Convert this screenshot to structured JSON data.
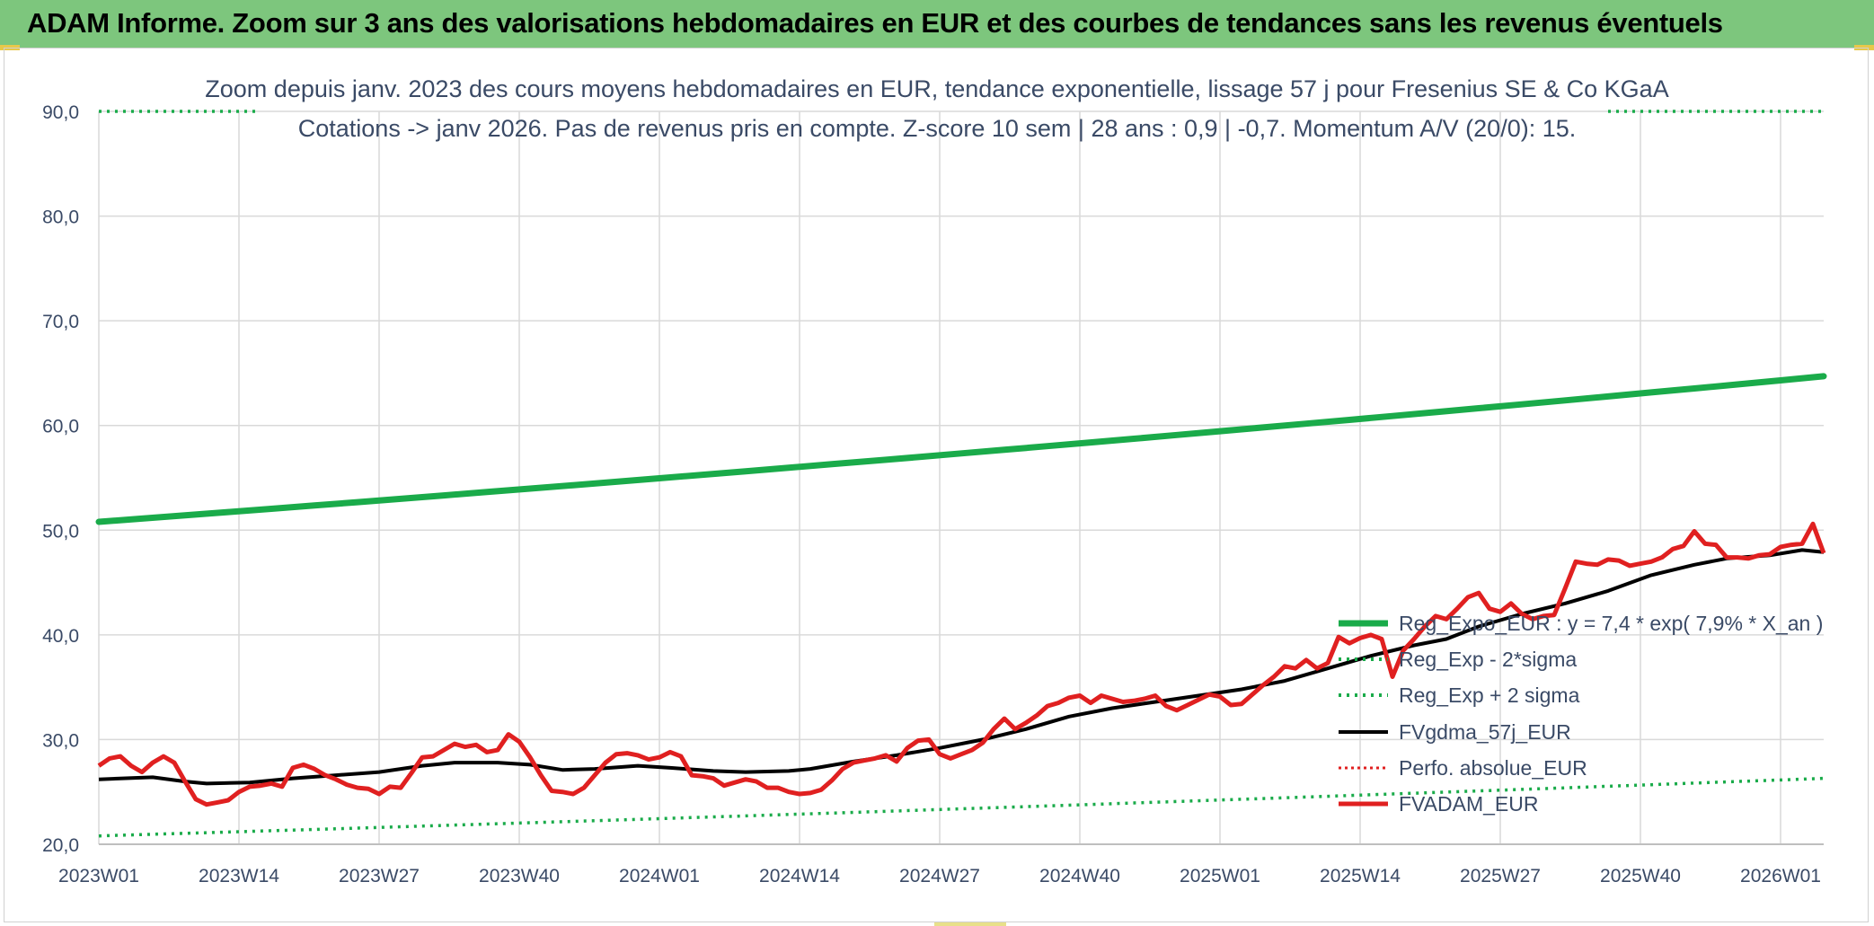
{
  "header": {
    "title": "ADAM Informe. Zoom sur 3 ans des valorisations hebdomadaires en EUR et des courbes de tendances sans les revenus éventuels"
  },
  "chart_data": {
    "type": "line",
    "title": "Zoom depuis janv. 2023 des cours moyens hebdomadaires en EUR, tendance exponentielle, lissage 57 j pour Fresenius SE & Co KGaA",
    "subtitle": "Cotations -> janv 2026. Pas de revenus pris en compte. Z-score 10 sem | 28 ans : 0,9 | -0,7. Momentum A/V (20/0): 15.",
    "ylim": [
      20,
      90
    ],
    "yticks": [
      "20,0",
      "30,0",
      "40,0",
      "50,0",
      "60,0",
      "70,0",
      "80,0",
      "90,0"
    ],
    "xticks": [
      "2023W01",
      "2023W14",
      "2023W27",
      "2023W40",
      "2024W01",
      "2024W14",
      "2024W27",
      "2024W40",
      "2025W01",
      "2025W14",
      "2025W27",
      "2025W40",
      "2026W01"
    ],
    "grid": true,
    "legend_position": "right",
    "x_weeks": 160,
    "series": [
      {
        "name": "Reg_Expo_EUR : y = 7,4 * exp( 7,9% *  X_an )",
        "color": "#1aab4a",
        "style": "solid-thick",
        "start": 50.8,
        "end": 64.7
      },
      {
        "name": "Reg_Exp - 2*sigma",
        "color": "#1aab4a",
        "style": "dotted",
        "start": 20.8,
        "end": 26.3
      },
      {
        "name": "Reg_Exp + 2 sigma",
        "color": "#1aab4a",
        "style": "dotted",
        "value": 90
      },
      {
        "name": "FVgdma_57j_EUR",
        "color": "#000000",
        "style": "solid",
        "points": [
          [
            0,
            26.2
          ],
          [
            5,
            26.4
          ],
          [
            8,
            26.0
          ],
          [
            10,
            25.8
          ],
          [
            14,
            25.9
          ],
          [
            18,
            26.3
          ],
          [
            22,
            26.6
          ],
          [
            26,
            26.9
          ],
          [
            30,
            27.5
          ],
          [
            33,
            27.8
          ],
          [
            37,
            27.8
          ],
          [
            40,
            27.6
          ],
          [
            43,
            27.1
          ],
          [
            46,
            27.2
          ],
          [
            50,
            27.5
          ],
          [
            53,
            27.3
          ],
          [
            57,
            27.0
          ],
          [
            60,
            26.9
          ],
          [
            64,
            27.0
          ],
          [
            66,
            27.2
          ],
          [
            70,
            27.9
          ],
          [
            74,
            28.5
          ],
          [
            78,
            29.2
          ],
          [
            82,
            30.0
          ],
          [
            86,
            31.0
          ],
          [
            90,
            32.2
          ],
          [
            94,
            33.0
          ],
          [
            98,
            33.6
          ],
          [
            102,
            34.2
          ],
          [
            106,
            34.8
          ],
          [
            110,
            35.6
          ],
          [
            114,
            36.8
          ],
          [
            118,
            38.0
          ],
          [
            122,
            39.0
          ],
          [
            125,
            39.6
          ],
          [
            128,
            40.8
          ],
          [
            132,
            42.0
          ],
          [
            136,
            43.0
          ],
          [
            140,
            44.2
          ],
          [
            144,
            45.7
          ],
          [
            148,
            46.7
          ],
          [
            151,
            47.3
          ],
          [
            155,
            47.6
          ],
          [
            158,
            48.1
          ],
          [
            160,
            47.9
          ]
        ]
      },
      {
        "name": "Perfo. absolue_EUR",
        "color": "#e02020",
        "style": "dotted"
      },
      {
        "name": "FVADAM_EUR",
        "color": "#e02020",
        "style": "solid-thick",
        "points": [
          [
            0,
            27.5
          ],
          [
            1,
            28.2
          ],
          [
            2,
            28.4
          ],
          [
            3,
            27.5
          ],
          [
            4,
            26.9
          ],
          [
            5,
            27.8
          ],
          [
            6,
            28.4
          ],
          [
            7,
            27.8
          ],
          [
            8,
            26.0
          ],
          [
            9,
            24.3
          ],
          [
            10,
            23.8
          ],
          [
            11,
            24.0
          ],
          [
            12,
            24.2
          ],
          [
            13,
            25.0
          ],
          [
            14,
            25.5
          ],
          [
            15,
            25.6
          ],
          [
            16,
            25.8
          ],
          [
            17,
            25.5
          ],
          [
            18,
            27.3
          ],
          [
            19,
            27.6
          ],
          [
            20,
            27.2
          ],
          [
            21,
            26.6
          ],
          [
            22,
            26.2
          ],
          [
            23,
            25.7
          ],
          [
            24,
            25.4
          ],
          [
            25,
            25.3
          ],
          [
            26,
            24.8
          ],
          [
            27,
            25.5
          ],
          [
            28,
            25.4
          ],
          [
            29,
            26.8
          ],
          [
            30,
            28.3
          ],
          [
            31,
            28.4
          ],
          [
            32,
            29.0
          ],
          [
            33,
            29.6
          ],
          [
            34,
            29.3
          ],
          [
            35,
            29.5
          ],
          [
            36,
            28.8
          ],
          [
            37,
            29.0
          ],
          [
            38,
            30.5
          ],
          [
            39,
            29.8
          ],
          [
            40,
            28.3
          ],
          [
            41,
            26.6
          ],
          [
            42,
            25.1
          ],
          [
            43,
            25.0
          ],
          [
            44,
            24.8
          ],
          [
            45,
            25.4
          ],
          [
            46,
            26.6
          ],
          [
            47,
            27.8
          ],
          [
            48,
            28.6
          ],
          [
            49,
            28.7
          ],
          [
            50,
            28.5
          ],
          [
            51,
            28.1
          ],
          [
            52,
            28.3
          ],
          [
            53,
            28.8
          ],
          [
            54,
            28.4
          ],
          [
            55,
            26.6
          ],
          [
            56,
            26.5
          ],
          [
            57,
            26.3
          ],
          [
            58,
            25.6
          ],
          [
            59,
            25.9
          ],
          [
            60,
            26.2
          ],
          [
            61,
            26.0
          ],
          [
            62,
            25.4
          ],
          [
            63,
            25.4
          ],
          [
            64,
            25.0
          ],
          [
            65,
            24.8
          ],
          [
            66,
            24.9
          ],
          [
            67,
            25.2
          ],
          [
            68,
            26.1
          ],
          [
            69,
            27.2
          ],
          [
            70,
            27.8
          ],
          [
            71,
            28.0
          ],
          [
            72,
            28.2
          ],
          [
            73,
            28.5
          ],
          [
            74,
            27.9
          ],
          [
            75,
            29.2
          ],
          [
            76,
            29.9
          ],
          [
            77,
            30.0
          ],
          [
            78,
            28.6
          ],
          [
            79,
            28.2
          ],
          [
            80,
            28.6
          ],
          [
            81,
            29.0
          ],
          [
            82,
            29.7
          ],
          [
            83,
            31.0
          ],
          [
            84,
            32.0
          ],
          [
            85,
            31.0
          ],
          [
            86,
            31.6
          ],
          [
            87,
            32.3
          ],
          [
            88,
            33.2
          ],
          [
            89,
            33.5
          ],
          [
            90,
            34.0
          ],
          [
            91,
            34.2
          ],
          [
            92,
            33.5
          ],
          [
            93,
            34.2
          ],
          [
            94,
            33.9
          ],
          [
            95,
            33.6
          ],
          [
            96,
            33.7
          ],
          [
            97,
            33.9
          ],
          [
            98,
            34.2
          ],
          [
            99,
            33.2
          ],
          [
            100,
            32.8
          ],
          [
            101,
            33.3
          ],
          [
            102,
            33.8
          ],
          [
            103,
            34.3
          ],
          [
            104,
            34.1
          ],
          [
            105,
            33.3
          ],
          [
            106,
            33.4
          ],
          [
            107,
            34.3
          ],
          [
            108,
            35.2
          ],
          [
            109,
            36.0
          ],
          [
            110,
            37.0
          ],
          [
            111,
            36.8
          ],
          [
            112,
            37.6
          ],
          [
            113,
            36.8
          ],
          [
            114,
            37.3
          ],
          [
            115,
            39.8
          ],
          [
            116,
            39.2
          ],
          [
            117,
            39.7
          ],
          [
            118,
            40.0
          ],
          [
            119,
            39.6
          ],
          [
            120,
            36.0
          ],
          [
            121,
            38.5
          ],
          [
            122,
            39.6
          ],
          [
            123,
            40.8
          ],
          [
            124,
            41.8
          ],
          [
            125,
            41.5
          ],
          [
            126,
            42.5
          ],
          [
            127,
            43.6
          ],
          [
            128,
            44.0
          ],
          [
            129,
            42.5
          ],
          [
            130,
            42.2
          ],
          [
            131,
            43.0
          ],
          [
            132,
            42.0
          ],
          [
            133,
            41.5
          ],
          [
            134,
            41.8
          ],
          [
            135,
            41.9
          ],
          [
            136,
            44.4
          ],
          [
            137,
            47.0
          ],
          [
            138,
            46.8
          ],
          [
            139,
            46.7
          ],
          [
            140,
            47.2
          ],
          [
            141,
            47.1
          ],
          [
            142,
            46.6
          ],
          [
            143,
            46.8
          ],
          [
            144,
            47.0
          ],
          [
            145,
            47.4
          ],
          [
            146,
            48.2
          ],
          [
            147,
            48.5
          ],
          [
            148,
            49.9
          ],
          [
            149,
            48.7
          ],
          [
            150,
            48.6
          ],
          [
            151,
            47.4
          ],
          [
            152,
            47.4
          ],
          [
            153,
            47.3
          ],
          [
            154,
            47.6
          ],
          [
            155,
            47.7
          ],
          [
            156,
            48.4
          ],
          [
            157,
            48.6
          ],
          [
            158,
            48.7
          ],
          [
            159,
            50.6
          ],
          [
            160,
            47.8
          ]
        ]
      }
    ]
  }
}
